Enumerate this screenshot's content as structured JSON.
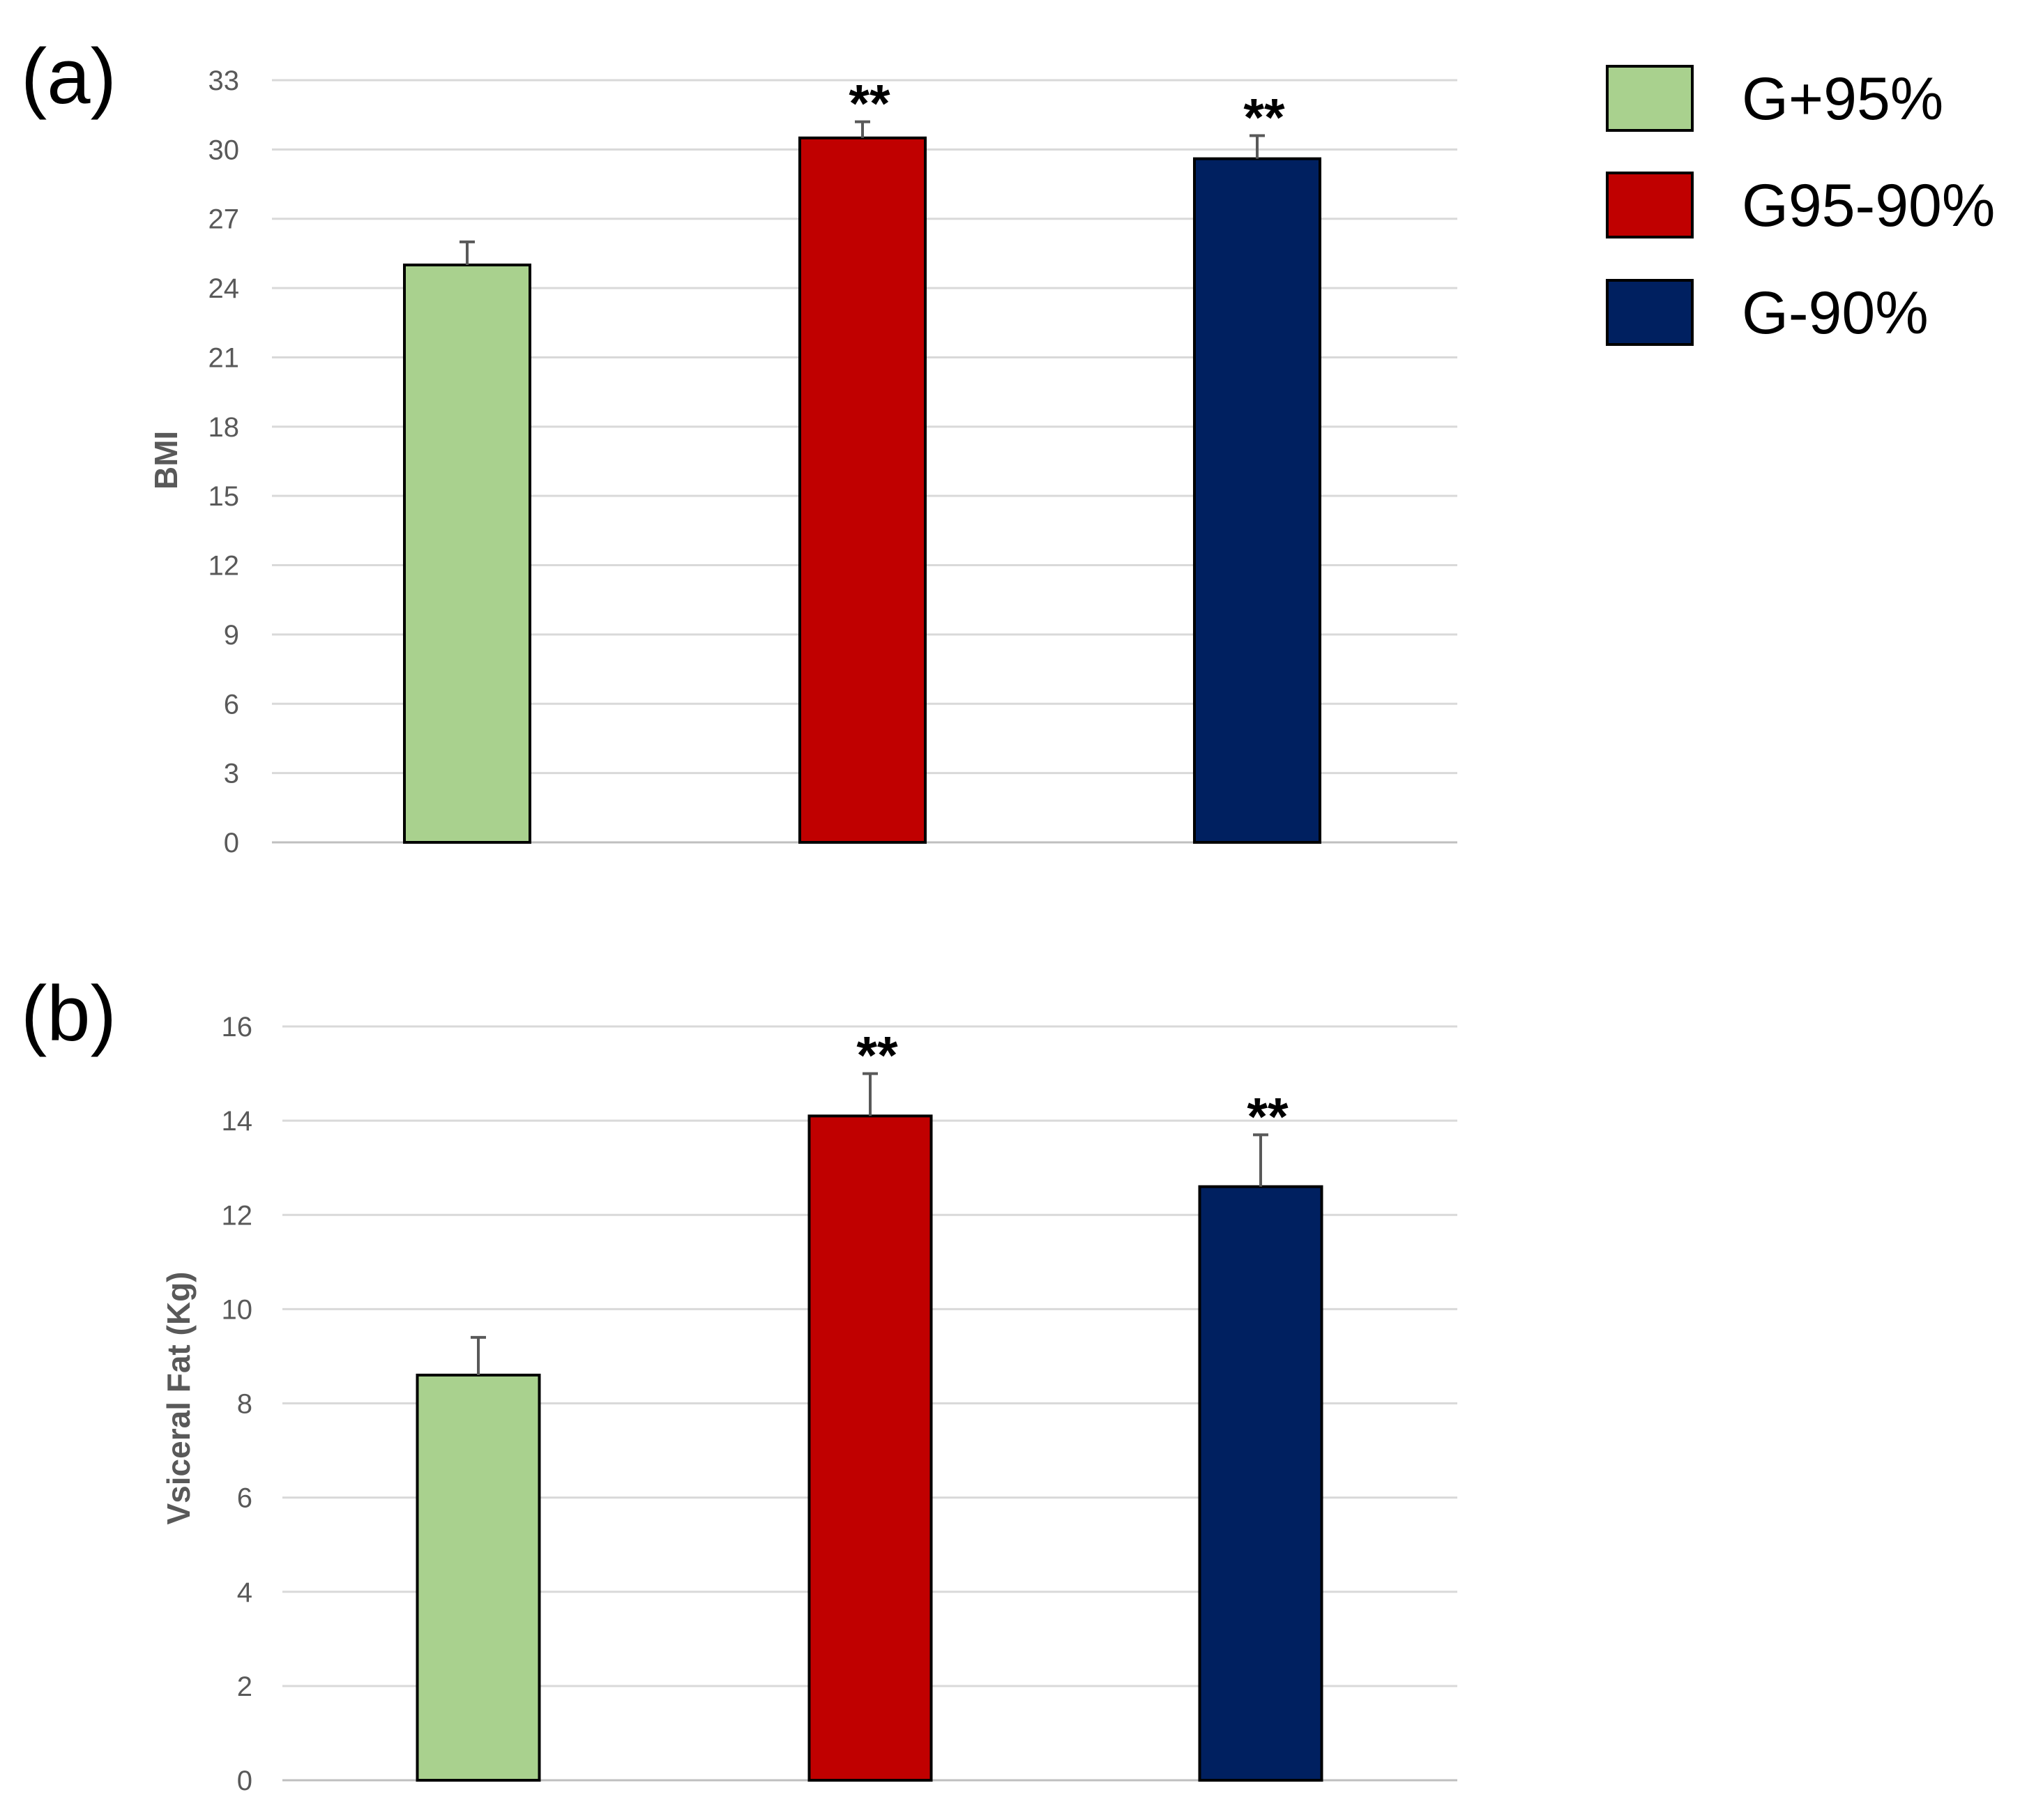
{
  "legend": [
    {
      "label": "G+95%",
      "color": "#a9d18e"
    },
    {
      "label": "G95-90%",
      "color": "#c00000"
    },
    {
      "label": "G-90%",
      "color": "#002060"
    }
  ],
  "chart_data": [
    {
      "type": "bar",
      "panel_label": "(a)",
      "title": "",
      "xlabel": "",
      "ylabel": "BMI",
      "ylim": [
        0,
        33
      ],
      "yticks": [
        "0",
        "3",
        "6",
        "9",
        "12",
        "15",
        "18",
        "21",
        "24",
        "27",
        "30",
        "33"
      ],
      "grid": true,
      "categories": [
        "G+95%",
        "G95-90%",
        "G-90%"
      ],
      "values": [
        25.0,
        30.5,
        29.6
      ],
      "errors": [
        1.0,
        0.7,
        1.0
      ],
      "colors": [
        "#a9d18e",
        "#c00000",
        "#002060"
      ],
      "annotations": [
        "",
        "**",
        "**"
      ]
    },
    {
      "type": "bar",
      "panel_label": "(b)",
      "title": "",
      "xlabel": "",
      "ylabel": "Vsiceral Fat (Kg)",
      "ylim": [
        0,
        16
      ],
      "yticks": [
        "0",
        "2",
        "4",
        "6",
        "8",
        "10",
        "12",
        "14",
        "16"
      ],
      "grid": true,
      "categories": [
        "G+95%",
        "G95-90%",
        "G-90%"
      ],
      "values": [
        8.6,
        14.1,
        12.6
      ],
      "errors": [
        0.8,
        0.9,
        1.1
      ],
      "colors": [
        "#a9d18e",
        "#c00000",
        "#002060"
      ],
      "annotations": [
        "",
        "**",
        "**"
      ]
    }
  ]
}
